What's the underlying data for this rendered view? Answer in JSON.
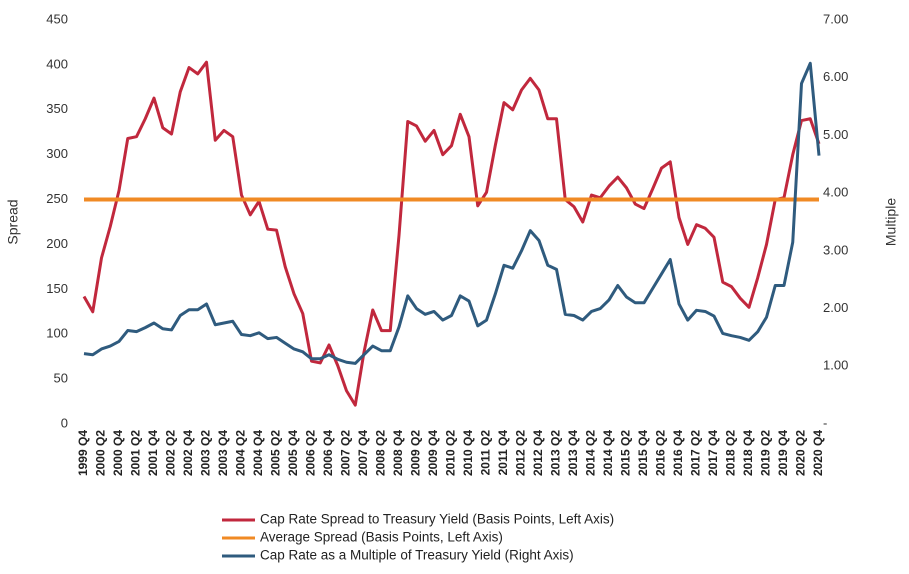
{
  "chart_data": {
    "type": "line",
    "y_label": "Spread",
    "y2_label": "Multiple",
    "categories": [
      "1999 Q4",
      null,
      "2000 Q2",
      null,
      "2000 Q4",
      null,
      "2001 Q2",
      null,
      "2001 Q4",
      null,
      "2002 Q2",
      null,
      "2002 Q4",
      null,
      "2003 Q2",
      null,
      "2003 Q4",
      null,
      "2004 Q2",
      null,
      "2004 Q4",
      null,
      "2005 Q2",
      null,
      "2005 Q4",
      null,
      "2006 Q2",
      null,
      "2006 Q4",
      null,
      "2007 Q2",
      null,
      "2007 Q4",
      null,
      "2008 Q2",
      null,
      "2008 Q4",
      null,
      "2009 Q2",
      null,
      "2009 Q4",
      null,
      "2010 Q2",
      null,
      "2010 Q4",
      null,
      "2011 Q2",
      null,
      "2011 Q4",
      null,
      "2012 Q2",
      null,
      "2012 Q4",
      null,
      "2013 Q2",
      null,
      "2013 Q4",
      null,
      "2014 Q2",
      null,
      "2014 Q4",
      null,
      "2015 Q2",
      null,
      "2015 Q4",
      null,
      "2016 Q2",
      null,
      "2016 Q4",
      null,
      "2017 Q2",
      null,
      "2017 Q4",
      null,
      "2018 Q2",
      null,
      "2018 Q4",
      null,
      "2019 Q2",
      null,
      "2019 Q4",
      null,
      "2020 Q2",
      null,
      "2020 Q4"
    ],
    "series": [
      {
        "name": "Cap Rate Spread to Treasury Yield (Basis Points, Left Axis)",
        "color": "#c1283d",
        "axis": "y",
        "values": [
          142,
          125,
          185,
          220,
          260,
          318,
          320,
          340,
          363,
          330,
          323,
          370,
          397,
          390,
          403,
          316,
          327,
          320,
          255,
          233,
          248,
          217,
          216,
          175,
          145,
          123,
          70,
          68,
          88,
          65,
          37,
          21,
          80,
          127,
          104,
          104,
          210,
          337,
          332,
          315,
          327,
          300,
          310,
          345,
          320,
          243,
          258,
          310,
          358,
          350,
          372,
          385,
          372,
          340,
          340,
          250,
          242,
          225,
          255,
          252,
          265,
          275,
          263,
          245,
          240,
          262,
          285,
          292,
          230,
          200,
          222,
          218,
          208,
          158,
          153,
          140,
          130,
          163,
          200,
          250,
          252,
          300,
          338,
          340,
          312
        ]
      },
      {
        "name": "Average Spread (Basis Points, Left Axis)",
        "color": "#f08a24",
        "axis": "y",
        "values": [
          250,
          250,
          250,
          250,
          250,
          250,
          250,
          250,
          250,
          250,
          250,
          250,
          250,
          250,
          250,
          250,
          250,
          250,
          250,
          250,
          250,
          250,
          250,
          250,
          250,
          250,
          250,
          250,
          250,
          250,
          250,
          250,
          250,
          250,
          250,
          250,
          250,
          250,
          250,
          250,
          250,
          250,
          250,
          250,
          250,
          250,
          250,
          250,
          250,
          250,
          250,
          250,
          250,
          250,
          250,
          250,
          250,
          250,
          250,
          250,
          250,
          250,
          250,
          250,
          250,
          250,
          250,
          250,
          250,
          250,
          250,
          250,
          250,
          250,
          250,
          250,
          250,
          250,
          250,
          250,
          250,
          250,
          250,
          250,
          250
        ]
      },
      {
        "name": "Cap Rate as a Multiple of Treasury Yield (Right Axis)",
        "color": "#2f5b7e",
        "axis": "y2",
        "values": [
          1.22,
          1.2,
          1.3,
          1.35,
          1.43,
          1.62,
          1.6,
          1.67,
          1.75,
          1.65,
          1.63,
          1.88,
          1.98,
          1.98,
          2.08,
          1.72,
          1.75,
          1.78,
          1.55,
          1.53,
          1.58,
          1.48,
          1.5,
          1.4,
          1.3,
          1.25,
          1.13,
          1.13,
          1.2,
          1.12,
          1.07,
          1.05,
          1.2,
          1.35,
          1.27,
          1.27,
          1.68,
          2.22,
          2.0,
          1.9,
          1.95,
          1.8,
          1.88,
          2.22,
          2.13,
          1.7,
          1.8,
          2.25,
          2.75,
          2.7,
          3.0,
          3.35,
          3.18,
          2.75,
          2.68,
          1.9,
          1.88,
          1.8,
          1.95,
          2.0,
          2.15,
          2.4,
          2.2,
          2.1,
          2.1,
          2.35,
          2.6,
          2.85,
          2.08,
          1.8,
          1.97,
          1.95,
          1.87,
          1.57,
          1.53,
          1.5,
          1.45,
          1.6,
          1.85,
          2.4,
          2.4,
          3.15,
          5.9,
          6.25,
          4.65
        ]
      }
    ],
    "ylim": [
      0,
      450
    ],
    "yticks": [
      0,
      50,
      100,
      150,
      200,
      250,
      300,
      350,
      400,
      450
    ],
    "y2lim": [
      0,
      7
    ],
    "y2ticks": [
      {
        "value": 0,
        "label": "-"
      },
      {
        "value": 1,
        "label": "1.00"
      },
      {
        "value": 2,
        "label": "2.00"
      },
      {
        "value": 3,
        "label": "3.00"
      },
      {
        "value": 4,
        "label": "4.00"
      },
      {
        "value": 5,
        "label": "5.00"
      },
      {
        "value": 6,
        "label": "6.00"
      },
      {
        "value": 7,
        "label": "7.00"
      }
    ],
    "grid": false,
    "legend": "bottom"
  }
}
